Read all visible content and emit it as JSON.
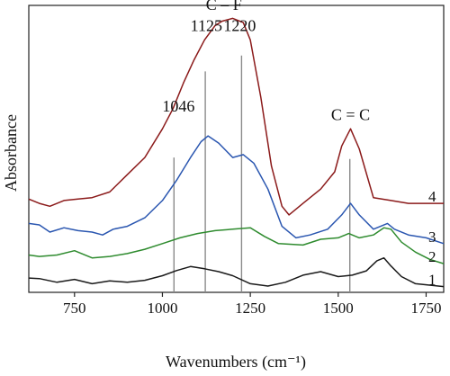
{
  "chart_data": {
    "type": "line",
    "xlabel": "Wavenumbers (cm⁻¹)",
    "ylabel": "Absorbance",
    "xlim": [
      1800,
      620
    ],
    "x_reversed": false,
    "x_ticks": [
      750,
      1000,
      1250,
      1500,
      1750
    ],
    "ylim": [
      0,
      1
    ],
    "grid": false,
    "annotations": [
      {
        "text": "C – F",
        "x": 1175,
        "y": 0.985
      },
      {
        "text": "1125",
        "x": 1125,
        "y": 0.91
      },
      {
        "text": "1220",
        "x": 1220,
        "y": 0.91
      },
      {
        "text": "1046",
        "x": 1046,
        "y": 0.63
      },
      {
        "text": "C = C",
        "x": 1535,
        "y": 0.6
      }
    ],
    "reference_lines": [
      {
        "x": 1033,
        "y_top": 0.47
      },
      {
        "x": 1122,
        "y_top": 0.77
      },
      {
        "x": 1225,
        "y_top": 0.825
      },
      {
        "x": 1533,
        "y_top": 0.465
      }
    ],
    "series": [
      {
        "label": "1",
        "color": "#1a1a1a",
        "x": [
          620,
          650,
          700,
          750,
          800,
          850,
          900,
          950,
          1000,
          1040,
          1080,
          1120,
          1160,
          1200,
          1250,
          1300,
          1350,
          1400,
          1450,
          1500,
          1540,
          1580,
          1610,
          1630,
          1650,
          1680,
          1720,
          1760,
          1800
        ],
        "y": [
          0.05,
          0.048,
          0.035,
          0.045,
          0.03,
          0.04,
          0.035,
          0.042,
          0.058,
          0.076,
          0.09,
          0.082,
          0.072,
          0.058,
          0.03,
          0.022,
          0.035,
          0.06,
          0.072,
          0.055,
          0.06,
          0.075,
          0.11,
          0.12,
          0.092,
          0.055,
          0.03,
          0.025,
          0.02
        ]
      },
      {
        "label": "2",
        "color": "#2e8b2e",
        "x": [
          620,
          650,
          700,
          750,
          800,
          850,
          900,
          950,
          1000,
          1050,
          1100,
          1150,
          1200,
          1250,
          1290,
          1330,
          1400,
          1450,
          1500,
          1530,
          1560,
          1600,
          1630,
          1650,
          1680,
          1720,
          1760,
          1800
        ],
        "y": [
          0.13,
          0.125,
          0.13,
          0.145,
          0.12,
          0.125,
          0.135,
          0.15,
          0.17,
          0.19,
          0.205,
          0.215,
          0.22,
          0.225,
          0.195,
          0.17,
          0.165,
          0.185,
          0.19,
          0.205,
          0.19,
          0.2,
          0.225,
          0.22,
          0.175,
          0.14,
          0.115,
          0.1
        ]
      },
      {
        "label": "3",
        "color": "#2a56b0",
        "x": [
          620,
          650,
          680,
          720,
          760,
          800,
          830,
          860,
          900,
          950,
          1000,
          1040,
          1080,
          1110,
          1130,
          1160,
          1200,
          1230,
          1260,
          1300,
          1340,
          1380,
          1420,
          1470,
          1510,
          1535,
          1560,
          1600,
          1640,
          1660,
          1700,
          1750,
          1800
        ],
        "y": [
          0.24,
          0.235,
          0.21,
          0.225,
          0.215,
          0.21,
          0.2,
          0.22,
          0.23,
          0.26,
          0.32,
          0.39,
          0.47,
          0.525,
          0.545,
          0.52,
          0.47,
          0.48,
          0.45,
          0.36,
          0.23,
          0.19,
          0.2,
          0.22,
          0.27,
          0.31,
          0.27,
          0.22,
          0.24,
          0.22,
          0.2,
          0.19,
          0.17
        ]
      },
      {
        "label": "4",
        "color": "#8b1a1a",
        "x": [
          620,
          650,
          680,
          720,
          760,
          800,
          850,
          900,
          950,
          1000,
          1030,
          1060,
          1090,
          1120,
          1150,
          1170,
          1200,
          1230,
          1250,
          1280,
          1310,
          1340,
          1360,
          1400,
          1450,
          1490,
          1510,
          1535,
          1560,
          1600,
          1650,
          1700,
          1750,
          1800
        ],
        "y": [
          0.325,
          0.31,
          0.3,
          0.32,
          0.325,
          0.33,
          0.35,
          0.41,
          0.47,
          0.57,
          0.64,
          0.73,
          0.81,
          0.88,
          0.93,
          0.945,
          0.955,
          0.94,
          0.88,
          0.68,
          0.44,
          0.3,
          0.27,
          0.31,
          0.36,
          0.42,
          0.51,
          0.57,
          0.5,
          0.33,
          0.32,
          0.31,
          0.31,
          0.31
        ]
      }
    ]
  }
}
